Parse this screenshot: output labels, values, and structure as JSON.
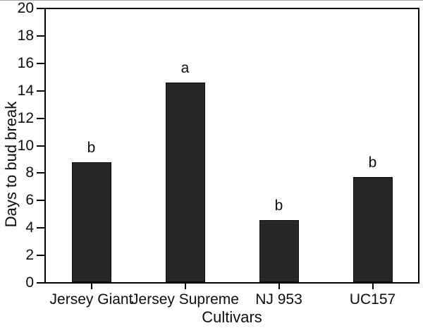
{
  "chart_data": {
    "type": "bar",
    "title": "",
    "categories": [
      "Jersey Giant",
      "Jersey Supreme",
      "NJ 953",
      "UC157"
    ],
    "values": [
      8.8,
      14.6,
      4.6,
      7.7
    ],
    "significance_labels": [
      "b",
      "a",
      "b",
      "b"
    ],
    "xlabel": "Cultivars",
    "ylabel": "Days to bud break",
    "ylim": [
      0,
      20
    ],
    "yticks": [
      0,
      2,
      4,
      6,
      8,
      10,
      12,
      14,
      16,
      18,
      20
    ],
    "grid": false,
    "legend": "none",
    "bar_color": "#262626",
    "axis_color": "#000000",
    "background_color": "#ffffff"
  }
}
